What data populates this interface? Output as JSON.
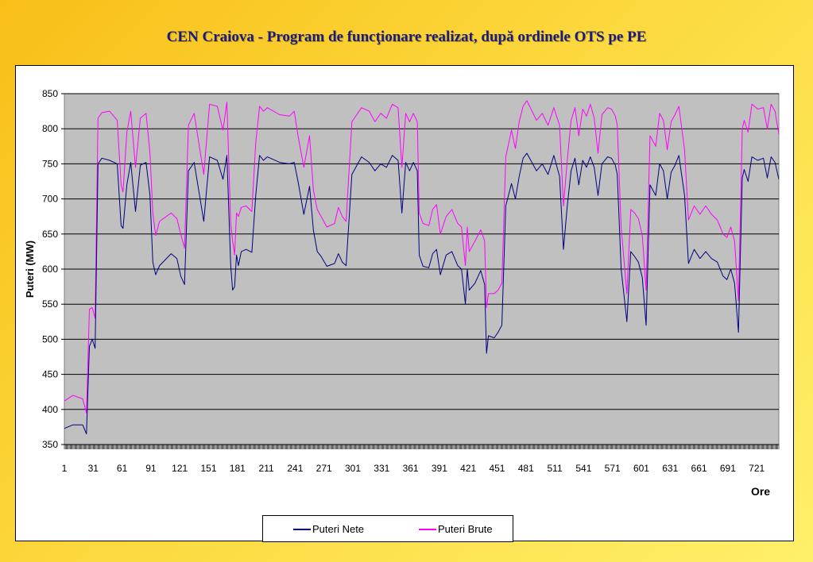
{
  "title": "CEN Craiova - Program de funcţionare realizat, după ordinele OTS pe PE",
  "colors": {
    "plot_background": "#c0c0c0",
    "gridline": "#000000",
    "net_series": "#000080",
    "gross_series": "#ff00ff"
  },
  "chart_data": {
    "type": "line",
    "ylabel": "Puteri  (MW)",
    "xlabel": "Ore",
    "ylim": [
      350,
      850
    ],
    "yticks": [
      350,
      400,
      450,
      500,
      550,
      600,
      650,
      700,
      750,
      800,
      850
    ],
    "xlim": [
      1,
      744
    ],
    "xticks": [
      1,
      31,
      61,
      91,
      121,
      151,
      181,
      211,
      241,
      271,
      301,
      331,
      361,
      391,
      421,
      451,
      481,
      511,
      541,
      571,
      601,
      631,
      661,
      691,
      721
    ],
    "grid": "horizontal",
    "legend_position": "bottom",
    "series": [
      {
        "name": "Puteri Nete",
        "color": "#000080",
        "x": [
          1,
          10,
          20,
          24,
          27,
          30,
          33,
          36,
          40,
          48,
          56,
          60,
          62,
          66,
          70,
          75,
          80,
          86,
          90,
          93,
          96,
          100,
          112,
          118,
          122,
          126,
          130,
          136,
          146,
          152,
          160,
          166,
          170,
          174,
          176,
          178,
          180,
          182,
          185,
          190,
          196,
          200,
          204,
          208,
          212,
          225,
          235,
          240,
          244,
          250,
          256,
          260,
          264,
          268,
          274,
          282,
          286,
          290,
          294,
          300,
          310,
          318,
          324,
          330,
          336,
          342,
          348,
          352,
          356,
          360,
          364,
          368,
          370,
          374,
          380,
          384,
          388,
          392,
          398,
          404,
          410,
          414,
          418,
          420,
          422,
          428,
          434,
          438,
          440,
          442,
          448,
          452,
          456,
          460,
          466,
          470,
          474,
          478,
          482,
          492,
          498,
          504,
          510,
          516,
          520,
          524,
          528,
          532,
          536,
          540,
          544,
          548,
          552,
          556,
          560,
          566,
          570,
          574,
          576,
          580,
          586,
          590,
          594,
          598,
          602,
          606,
          610,
          616,
          620,
          624,
          628,
          632,
          636,
          640,
          646,
          650,
          656,
          662,
          668,
          674,
          680,
          686,
          690,
          694,
          698,
          702,
          706,
          708,
          712,
          716,
          722,
          728,
          732,
          736,
          740,
          744
        ],
        "values": [
          373,
          378,
          378,
          365,
          490,
          500,
          487,
          750,
          758,
          755,
          750,
          662,
          658,
          720,
          752,
          682,
          748,
          752,
          705,
          610,
          592,
          605,
          622,
          615,
          590,
          578,
          740,
          752,
          668,
          760,
          755,
          728,
          762,
          605,
          570,
          575,
          620,
          605,
          625,
          628,
          624,
          705,
          762,
          755,
          760,
          752,
          750,
          752,
          725,
          678,
          718,
          655,
          625,
          618,
          604,
          608,
          622,
          610,
          605,
          735,
          760,
          752,
          740,
          750,
          745,
          762,
          755,
          680,
          752,
          740,
          752,
          740,
          620,
          604,
          602,
          622,
          628,
          592,
          620,
          625,
          605,
          600,
          550,
          600,
          570,
          580,
          598,
          578,
          480,
          505,
          502,
          510,
          520,
          690,
          722,
          700,
          732,
          758,
          765,
          740,
          750,
          735,
          762,
          732,
          628,
          690,
          740,
          758,
          720,
          755,
          745,
          760,
          745,
          705,
          750,
          760,
          758,
          748,
          735,
          600,
          525,
          625,
          618,
          610,
          588,
          520,
          720,
          705,
          750,
          740,
          700,
          738,
          748,
          762,
          705,
          608,
          628,
          615,
          625,
          615,
          610,
          590,
          585,
          600,
          580,
          510,
          730,
          742,
          725,
          760,
          755,
          758,
          730,
          760,
          752,
          728
        ]
      },
      {
        "name": "Puteri Brute",
        "color": "#ff00ff",
        "x": [
          1,
          10,
          20,
          24,
          27,
          30,
          33,
          36,
          40,
          48,
          56,
          60,
          62,
          66,
          70,
          75,
          80,
          86,
          90,
          93,
          96,
          100,
          112,
          118,
          122,
          126,
          130,
          136,
          146,
          152,
          160,
          166,
          170,
          174,
          176,
          178,
          180,
          182,
          185,
          190,
          196,
          200,
          204,
          208,
          212,
          225,
          235,
          240,
          244,
          250,
          256,
          260,
          264,
          268,
          274,
          282,
          286,
          290,
          294,
          300,
          310,
          318,
          324,
          330,
          336,
          342,
          348,
          352,
          356,
          360,
          364,
          368,
          370,
          374,
          380,
          384,
          388,
          392,
          398,
          404,
          410,
          414,
          418,
          420,
          422,
          428,
          434,
          438,
          440,
          442,
          448,
          452,
          456,
          460,
          466,
          470,
          474,
          478,
          482,
          492,
          498,
          504,
          510,
          516,
          520,
          524,
          528,
          532,
          536,
          540,
          544,
          548,
          552,
          556,
          560,
          566,
          570,
          574,
          576,
          580,
          586,
          590,
          594,
          598,
          602,
          606,
          610,
          616,
          620,
          624,
          628,
          632,
          636,
          640,
          646,
          650,
          656,
          662,
          668,
          674,
          680,
          686,
          690,
          694,
          698,
          702,
          706,
          708,
          712,
          716,
          722,
          728,
          732,
          736,
          740,
          744
        ],
        "values": [
          412,
          420,
          415,
          395,
          543,
          545,
          530,
          815,
          823,
          825,
          812,
          720,
          710,
          795,
          825,
          745,
          815,
          822,
          765,
          680,
          648,
          668,
          680,
          672,
          650,
          630,
          805,
          822,
          735,
          835,
          832,
          798,
          838,
          665,
          640,
          620,
          680,
          675,
          688,
          690,
          682,
          780,
          832,
          825,
          830,
          820,
          818,
          825,
          790,
          745,
          790,
          712,
          685,
          675,
          660,
          665,
          688,
          675,
          668,
          810,
          830,
          825,
          810,
          822,
          815,
          835,
          830,
          745,
          822,
          810,
          822,
          810,
          680,
          665,
          662,
          685,
          692,
          650,
          675,
          685,
          665,
          660,
          605,
          660,
          625,
          640,
          656,
          640,
          545,
          565,
          565,
          570,
          580,
          760,
          798,
          772,
          810,
          832,
          840,
          812,
          822,
          805,
          830,
          805,
          690,
          755,
          812,
          830,
          790,
          828,
          818,
          835,
          815,
          765,
          820,
          830,
          828,
          818,
          805,
          660,
          565,
          685,
          680,
          672,
          648,
          570,
          790,
          775,
          822,
          812,
          770,
          810,
          820,
          832,
          770,
          670,
          690,
          678,
          690,
          678,
          670,
          650,
          645,
          660,
          640,
          555,
          800,
          812,
          795,
          835,
          828,
          830,
          800,
          835,
          825,
          792
        ]
      }
    ]
  }
}
